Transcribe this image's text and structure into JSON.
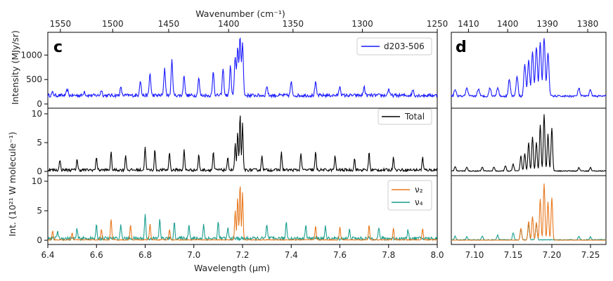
{
  "chart_data": [
    {
      "panel": "c",
      "type": "line",
      "x_label_bottom": "Wavelength (µm)",
      "x_label_top": "Wavenumber (cm⁻¹)",
      "x_range_um": [
        6.4,
        8.0
      ],
      "bottom_ticks": [
        "6.4",
        "6.6",
        "6.8",
        "7.0",
        "7.2",
        "7.4",
        "7.6",
        "7.8",
        "8.0"
      ],
      "top_ticks": [
        "1550",
        "1500",
        "1450",
        "1400",
        "1350",
        "1300",
        "1250"
      ],
      "rows": [
        {
          "y_label": "Intensity (MJy/sr)",
          "y_ticks": [
            "0",
            "500",
            "1000"
          ],
          "y_range": [
            0,
            1350
          ],
          "series": [
            {
              "name": "d203-506",
              "color": "#1a1aff",
              "peaks": [
                [
                  6.42,
                  60
                ],
                [
                  6.48,
                  120
                ],
                [
                  6.55,
                  90
                ],
                [
                  6.62,
                  110
                ],
                [
                  6.7,
                  160
                ],
                [
                  6.78,
                  320
                ],
                [
                  6.82,
                  450
                ],
                [
                  6.88,
                  560
                ],
                [
                  6.91,
                  720
                ],
                [
                  6.96,
                  420
                ],
                [
                  7.02,
                  360
                ],
                [
                  7.08,
                  500
                ],
                [
                  7.12,
                  550
                ],
                [
                  7.15,
                  600
                ],
                [
                  7.17,
                  800
                ],
                [
                  7.18,
                  1000
                ],
                [
                  7.19,
                  1200
                ],
                [
                  7.2,
                  1100
                ],
                [
                  7.3,
                  200
                ],
                [
                  7.4,
                  280
                ],
                [
                  7.5,
                  260
                ],
                [
                  7.6,
                  200
                ],
                [
                  7.7,
                  180
                ],
                [
                  7.8,
                  140
                ],
                [
                  7.9,
                  120
                ]
              ]
            }
          ]
        },
        {
          "y_label": "",
          "y_ticks": [
            "0",
            "5",
            "10"
          ],
          "y_range": [
            0,
            10
          ],
          "series": [
            {
              "name": "Total",
              "color": "#000000",
              "peaks": [
                [
                  6.45,
                  1.8
                ],
                [
                  6.52,
                  2.0
                ],
                [
                  6.6,
                  2.4
                ],
                [
                  6.66,
                  3.0
                ],
                [
                  6.72,
                  2.6
                ],
                [
                  6.8,
                  4.2
                ],
                [
                  6.84,
                  3.6
                ],
                [
                  6.9,
                  3.2
                ],
                [
                  6.96,
                  3.4
                ],
                [
                  7.02,
                  2.6
                ],
                [
                  7.08,
                  3.2
                ],
                [
                  7.14,
                  2.2
                ],
                [
                  7.17,
                  4.6
                ],
                [
                  7.18,
                  6.5
                ],
                [
                  7.19,
                  9.8
                ],
                [
                  7.2,
                  8.0
                ],
                [
                  7.28,
                  2.6
                ],
                [
                  7.36,
                  3.0
                ],
                [
                  7.44,
                  3.0
                ],
                [
                  7.5,
                  3.1
                ],
                [
                  7.58,
                  2.4
                ],
                [
                  7.66,
                  2.0
                ],
                [
                  7.72,
                  3.2
                ],
                [
                  7.82,
                  2.4
                ],
                [
                  7.94,
                  2.2
                ]
              ]
            }
          ]
        },
        {
          "y_label": "Int. (10²¹ W molecule⁻¹)",
          "y_ticks": [
            "0",
            "5",
            "10"
          ],
          "y_range": [
            0,
            10
          ],
          "series": [
            {
              "name": "ν₂",
              "color": "#e8781e",
              "peaks": [
                [
                  6.42,
                  1.6
                ],
                [
                  6.5,
                  1.2
                ],
                [
                  6.62,
                  1.8
                ],
                [
                  6.66,
                  3.6
                ],
                [
                  6.74,
                  2.6
                ],
                [
                  6.82,
                  2.8
                ],
                [
                  6.9,
                  1.8
                ],
                [
                  7.17,
                  5.0
                ],
                [
                  7.18,
                  7.2
                ],
                [
                  7.19,
                  9.6
                ],
                [
                  7.2,
                  8.0
                ],
                [
                  7.5,
                  2.4
                ],
                [
                  7.6,
                  2.2
                ],
                [
                  7.72,
                  2.6
                ],
                [
                  7.82,
                  2.0
                ],
                [
                  7.94,
                  2.0
                ]
              ]
            },
            {
              "name": "ν₄",
              "color": "#1a9e8e",
              "peaks": [
                [
                  6.44,
                  1.4
                ],
                [
                  6.52,
                  1.6
                ],
                [
                  6.6,
                  2.2
                ],
                [
                  6.7,
                  2.4
                ],
                [
                  6.8,
                  4.2
                ],
                [
                  6.86,
                  3.4
                ],
                [
                  6.92,
                  2.8
                ],
                [
                  6.98,
                  2.6
                ],
                [
                  7.04,
                  2.4
                ],
                [
                  7.1,
                  2.8
                ],
                [
                  7.14,
                  1.8
                ],
                [
                  7.3,
                  2.4
                ],
                [
                  7.38,
                  3.0
                ],
                [
                  7.46,
                  2.6
                ],
                [
                  7.54,
                  2.0
                ],
                [
                  7.64,
                  1.6
                ],
                [
                  7.76,
                  1.8
                ],
                [
                  7.88,
                  1.4
                ]
              ]
            }
          ]
        }
      ],
      "legends": [
        "d203-506",
        "Total",
        "ν₂",
        "ν₄"
      ]
    },
    {
      "panel": "d",
      "type": "line",
      "x_range_um": [
        7.07,
        7.27
      ],
      "bottom_ticks": [
        "7.10",
        "7.15",
        "7.20",
        "7.25"
      ],
      "top_ticks": [
        "1410",
        "1400",
        "1390",
        "1380"
      ],
      "rows": [
        {
          "y_range": [
            0,
            1350
          ],
          "color": "#1a1aff",
          "peaks": [
            [
              7.075,
              140
            ],
            [
              7.09,
              160
            ],
            [
              7.105,
              150
            ],
            [
              7.12,
              170
            ],
            [
              7.13,
              180
            ],
            [
              7.145,
              350
            ],
            [
              7.155,
              400
            ],
            [
              7.165,
              650
            ],
            [
              7.17,
              720
            ],
            [
              7.175,
              900
            ],
            [
              7.18,
              1000
            ],
            [
              7.185,
              1100
            ],
            [
              7.19,
              1200
            ],
            [
              7.195,
              900
            ],
            [
              7.235,
              160
            ],
            [
              7.25,
              130
            ]
          ]
        },
        {
          "y_range": [
            0,
            10
          ],
          "color": "#000000",
          "peaks": [
            [
              7.075,
              0.8
            ],
            [
              7.09,
              0.7
            ],
            [
              7.11,
              0.7
            ],
            [
              7.125,
              0.7
            ],
            [
              7.14,
              0.9
            ],
            [
              7.15,
              1.2
            ],
            [
              7.16,
              2.6
            ],
            [
              7.165,
              3.0
            ],
            [
              7.17,
              5.0
            ],
            [
              7.175,
              6.0
            ],
            [
              7.18,
              5.0
            ],
            [
              7.185,
              8.0
            ],
            [
              7.19,
              9.8
            ],
            [
              7.195,
              6.5
            ],
            [
              7.2,
              7.5
            ],
            [
              7.235,
              0.6
            ],
            [
              7.25,
              0.6
            ]
          ]
        },
        {
          "y_range": [
            0,
            10
          ],
          "series": [
            {
              "color": "#e8781e",
              "peaks": [
                [
                  7.16,
                  2.0
                ],
                [
                  7.17,
                  3.2
                ],
                [
                  7.175,
                  4.0
                ],
                [
                  7.18,
                  3.0
                ],
                [
                  7.185,
                  7.0
                ],
                [
                  7.19,
                  9.6
                ],
                [
                  7.195,
                  6.5
                ],
                [
                  7.2,
                  7.2
                ]
              ]
            },
            {
              "color": "#1a9e8e",
              "peaks": [
                [
                  7.075,
                  0.6
                ],
                [
                  7.09,
                  0.5
                ],
                [
                  7.11,
                  0.6
                ],
                [
                  7.13,
                  0.8
                ],
                [
                  7.15,
                  1.2
                ],
                [
                  7.16,
                  1.8
                ],
                [
                  7.17,
                  2.6
                ],
                [
                  7.18,
                  2.8
                ],
                [
                  7.235,
                  0.6
                ],
                [
                  7.25,
                  0.5
                ]
              ]
            }
          ]
        }
      ]
    }
  ]
}
